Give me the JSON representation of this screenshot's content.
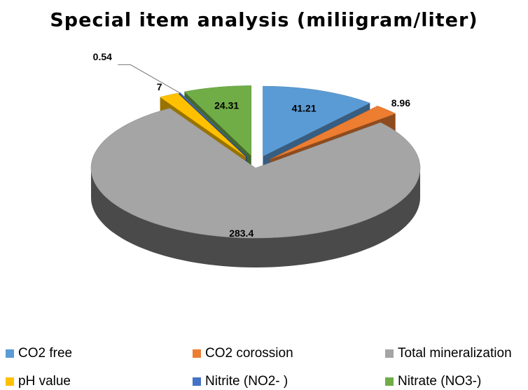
{
  "chart_data": {
    "type": "pie3d",
    "title": "Special item analysis (miliigram/liter)",
    "categories": [
      "CO2 free",
      "CO2 corossion",
      "Total mineralization",
      "pH value",
      "Nitrite (NO2- )",
      "Nitrate (NO3-)"
    ],
    "values": [
      41.21,
      8.96,
      283.4,
      7,
      0.54,
      24.31
    ],
    "colors": [
      "#5b9bd5",
      "#ed7d31",
      "#a5a5a5",
      "#ffc000",
      "#4472c4",
      "#70ad47"
    ],
    "legend": "bottom"
  }
}
